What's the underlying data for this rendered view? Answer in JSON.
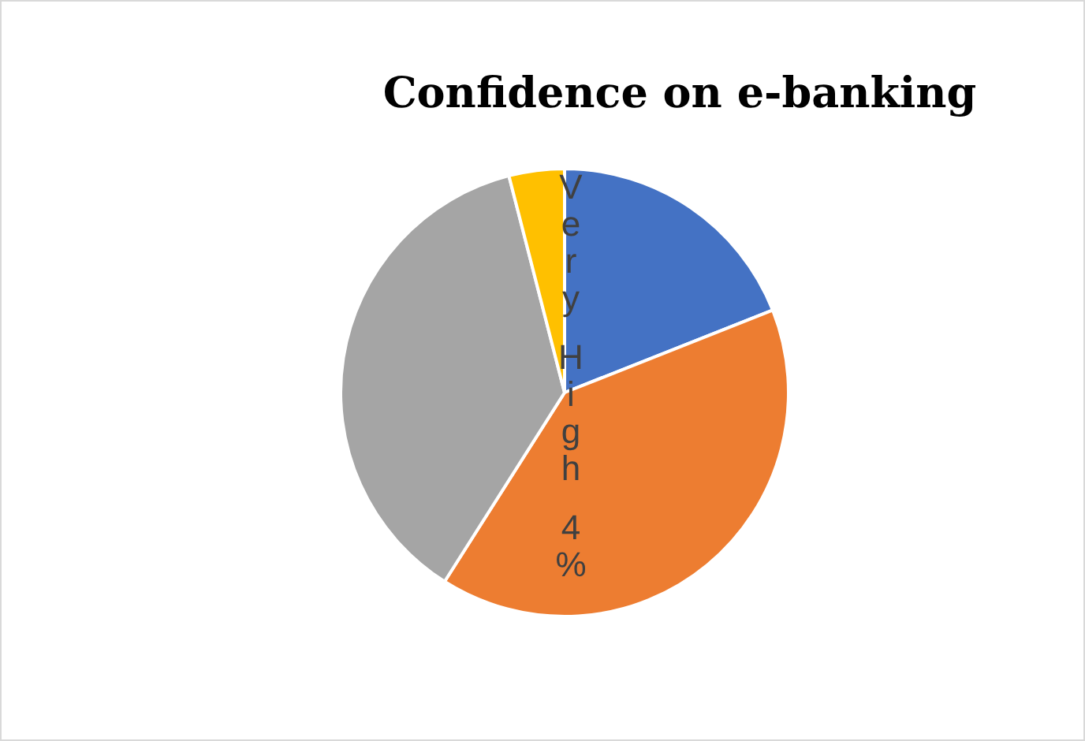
{
  "chart_data": {
    "type": "pie",
    "title": "Confidence on e-banking",
    "categories": [
      null,
      null,
      null,
      "Very High"
    ],
    "values": [
      19,
      40,
      37,
      4
    ],
    "colors": [
      "#4472c4",
      "#ed7d31",
      "#a5a5a5",
      "#ffc000"
    ],
    "value_labels": [
      null,
      null,
      null,
      "4%"
    ],
    "legend": false
  }
}
